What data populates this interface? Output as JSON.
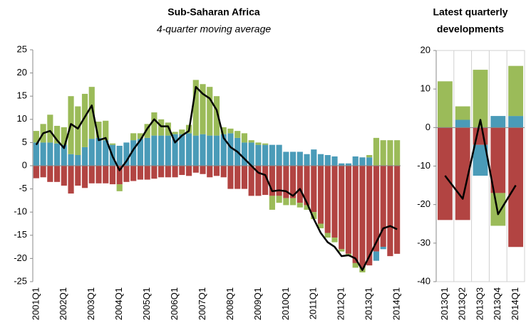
{
  "chart_data": [
    {
      "type": "bar",
      "title": "Sub-Saharan Africa",
      "subtitle": "4-quarter moving average",
      "categories": [
        "2001Q1",
        null,
        null,
        null,
        "2002Q1",
        null,
        null,
        null,
        "2003Q1",
        null,
        null,
        null,
        "2004Q1",
        null,
        null,
        null,
        "2005Q1",
        null,
        null,
        null,
        "2006Q1",
        null,
        null,
        null,
        "2007Q1",
        null,
        null,
        null,
        "2008Q1",
        null,
        null,
        null,
        "2009Q1",
        null,
        null,
        null,
        "2010Q1",
        null,
        null,
        null,
        "2011Q1",
        null,
        null,
        null,
        "2012Q1",
        null,
        null,
        null,
        "2013Q1",
        null,
        null,
        null,
        "2014Q1"
      ],
      "series": [
        {
          "type": "bar",
          "color": "#4a9bb8",
          "values": [
            5,
            5,
            5,
            4.8,
            4.5,
            2.5,
            2.3,
            4,
            5.8,
            6,
            5.5,
            4.5,
            4.3,
            5,
            5.5,
            5.8,
            6,
            6.5,
            6.5,
            6.5,
            6.8,
            6.8,
            7,
            6.5,
            6.8,
            6.5,
            6.5,
            6.8,
            7,
            6,
            5,
            5,
            4.5,
            4.5,
            4.5,
            4.5,
            3,
            3,
            3,
            2.5,
            3.5,
            2.5,
            2.3,
            2,
            0.5,
            0.5,
            2,
            1.8,
            1.8,
            -2,
            -0.5,
            0,
            0
          ]
        },
        {
          "type": "bar",
          "color": "#9bbb59",
          "values": [
            2.5,
            4,
            6,
            3.8,
            3.8,
            12.5,
            10.5,
            11.5,
            11.2,
            3.5,
            4.2,
            0.3,
            -1.5,
            0,
            1.5,
            1.2,
            3,
            5,
            3.5,
            2.8,
            0.5,
            1,
            1.8,
            12,
            10.8,
            10.5,
            8.5,
            1.5,
            1,
            1.5,
            2,
            0.5,
            0.5,
            0.3,
            -3,
            -1.5,
            -1.5,
            -1.5,
            -1,
            -1,
            -1.5,
            -1,
            -1,
            -1,
            -0.5,
            -0.5,
            -1,
            -1,
            0.5,
            6,
            5.5,
            5.5,
            5.5
          ]
        },
        {
          "type": "bar",
          "color": "#b24442",
          "values": [
            -2.7,
            -2.5,
            -3.5,
            -3.5,
            -4.3,
            -6,
            -4.3,
            -4.8,
            -3.8,
            -3.8,
            -3.8,
            -4,
            -4,
            -3.5,
            -3.3,
            -3,
            -3,
            -2.8,
            -2.5,
            -2.5,
            -2.5,
            -2,
            -2.2,
            -1.5,
            -1.8,
            -2.5,
            -2.2,
            -2.5,
            -5,
            -5,
            -5,
            -6.5,
            -6.5,
            -6.3,
            -6.5,
            -6.5,
            -7,
            -7,
            -8,
            -8.5,
            -10,
            -12.5,
            -14.5,
            -15.5,
            -18,
            -19,
            -21,
            -22,
            -21.5,
            -18.5,
            -17.5,
            -19.5,
            -19
          ]
        },
        {
          "type": "line",
          "color": "#000000",
          "values": [
            4.5,
            7,
            7.5,
            5.5,
            3.8,
            9,
            8,
            10.5,
            13,
            5.5,
            6,
            2,
            -1,
            1,
            3.5,
            5.5,
            8,
            10,
            8.5,
            8.5,
            5,
            6.5,
            7.5,
            17,
            15.5,
            14.5,
            12,
            6,
            4,
            3,
            1.5,
            0,
            -1.5,
            -2,
            -5.5,
            -5.3,
            -5.5,
            -6.5,
            -5,
            -8,
            -11.5,
            -14.5,
            -16.5,
            -17.5,
            -19.5,
            -19.3,
            -20,
            -22.5,
            -19.5,
            -16.5,
            -13.5,
            -13,
            -13.7
          ]
        }
      ],
      "ylim": [
        -25,
        25
      ],
      "yticks": [
        -25,
        -20,
        -15,
        -10,
        -5,
        0,
        5,
        10,
        15,
        20,
        25
      ]
    },
    {
      "type": "bar",
      "title": [
        "Latest quarterly",
        "developments"
      ],
      "categories": [
        "2013Q1",
        "2013Q2",
        "2013Q3",
        "2013Q4",
        "2014Q1"
      ],
      "series": [
        {
          "type": "bar",
          "color": "#4a9bb8",
          "values": [
            0,
            2,
            -8,
            3,
            3
          ]
        },
        {
          "type": "bar",
          "color": "#9bbb59",
          "values": [
            12,
            3.5,
            15,
            -8.5,
            13
          ]
        },
        {
          "type": "bar",
          "color": "#b24442",
          "values": [
            -24,
            -24,
            -4.5,
            -17,
            -31
          ]
        },
        {
          "type": "line",
          "color": "#000000",
          "values": [
            -12.5,
            -18.5,
            2,
            -22.5,
            -15
          ]
        }
      ],
      "ylim": [
        -40,
        20
      ],
      "yticks": [
        -40,
        -30,
        -20,
        -10,
        0,
        10,
        20
      ],
      "grid": true
    }
  ]
}
